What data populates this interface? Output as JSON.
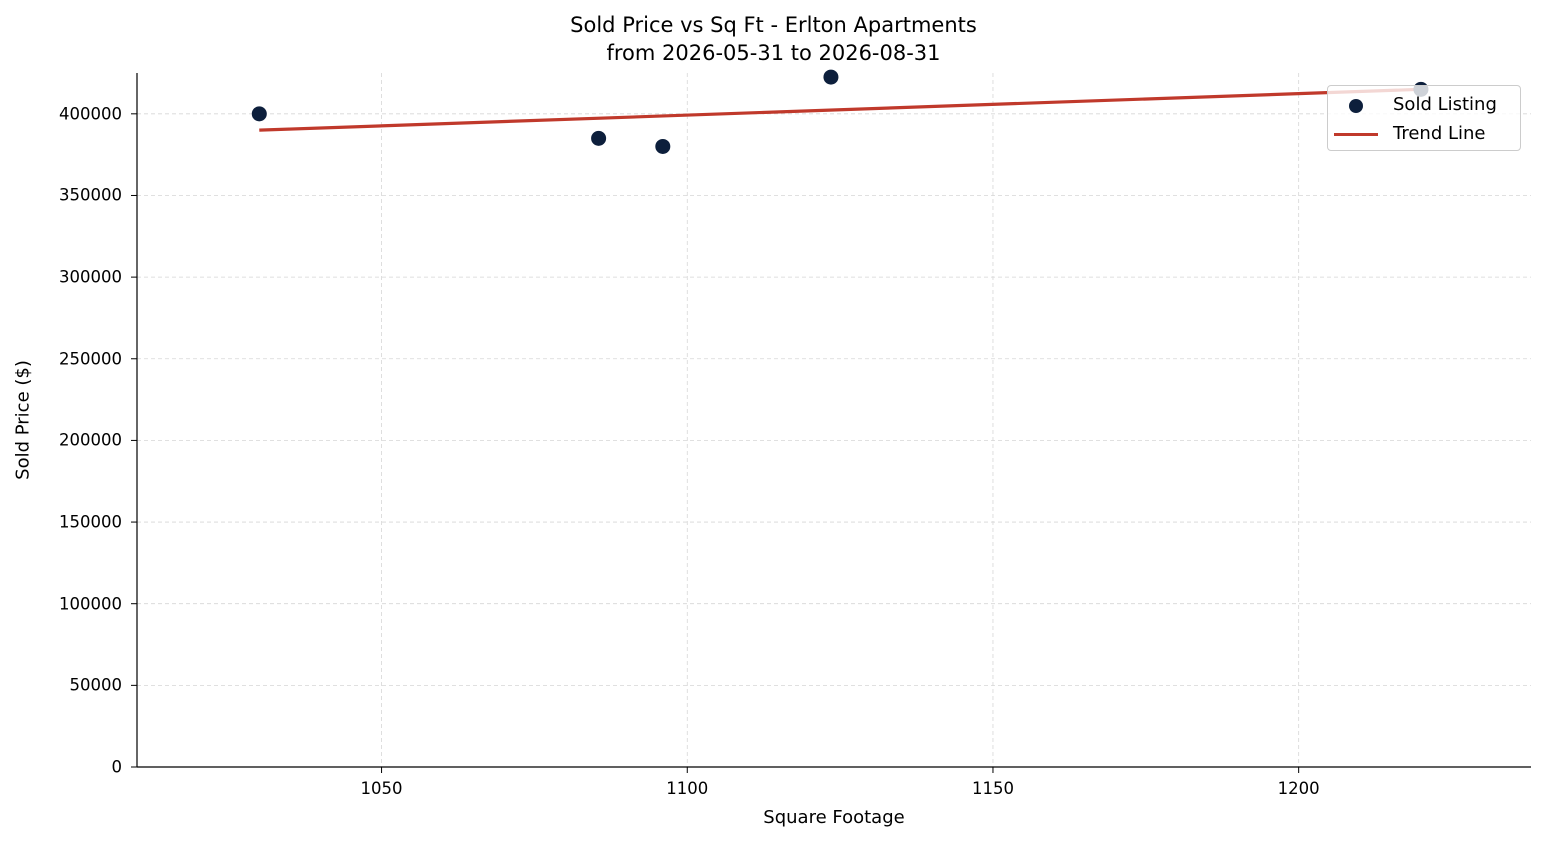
{
  "chart_data": {
    "type": "scatter",
    "title": "Sold Price vs Sq Ft - Erlton Apartments",
    "subtitle": "from 2026-05-31 to 2026-08-31",
    "xlabel": "Square Footage",
    "ylabel": "Sold Price ($)",
    "xlim": [
      1010,
      1238
    ],
    "ylim": [
      0,
      425000
    ],
    "xticks": [
      "1050",
      "1100",
      "1150",
      "1200"
    ],
    "yticks": [
      "0",
      "50000",
      "100000",
      "150000",
      "200000",
      "250000",
      "300000",
      "350000",
      "400000"
    ],
    "grid": true,
    "legend_position": "top-right",
    "series": [
      {
        "name": "Sold Listing",
        "kind": "scatter",
        "color": "#0d1f3c",
        "points": [
          {
            "x": 1030,
            "y": 400000
          },
          {
            "x": 1085.5,
            "y": 385000
          },
          {
            "x": 1096,
            "y": 380000
          },
          {
            "x": 1123.5,
            "y": 422500
          },
          {
            "x": 1220,
            "y": 415000
          }
        ]
      },
      {
        "name": "Trend Line",
        "kind": "line",
        "color": "#c0392b",
        "points": [
          {
            "x": 1030,
            "y": 390000
          },
          {
            "x": 1220,
            "y": 415000
          }
        ]
      }
    ]
  }
}
